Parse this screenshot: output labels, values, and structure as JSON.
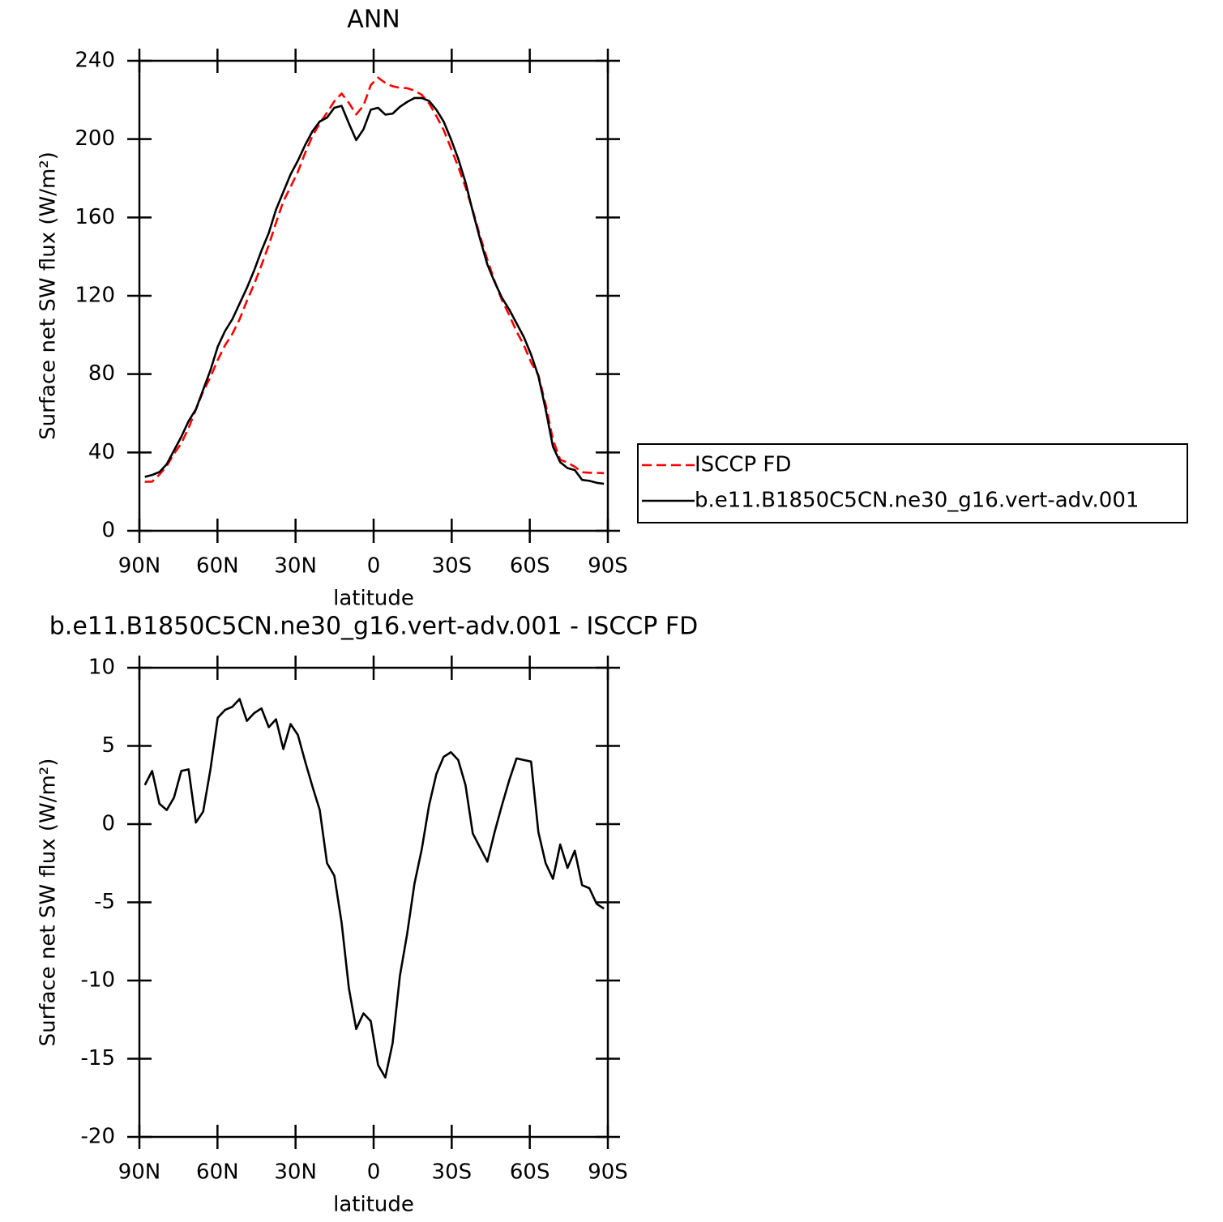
{
  "chart_data": [
    {
      "type": "line",
      "title": "ANN",
      "x_label": "latitude",
      "y_label": "Surface net SW flux (W/m²)",
      "x": [
        87.9,
        85.1,
        82.3,
        79.5,
        76.7,
        73.9,
        71.1,
        68.3,
        65.5,
        62.7,
        59.9,
        57.1,
        54.3,
        51.5,
        48.7,
        45.9,
        43.1,
        40.3,
        37.5,
        34.7,
        31.9,
        29.1,
        26.3,
        23.5,
        20.7,
        17.9,
        15.1,
        12.3,
        9.5,
        6.7,
        3.9,
        1.1,
        -1.7,
        -4.5,
        -7.3,
        -10.1,
        -12.9,
        -15.7,
        -18.5,
        -21.3,
        -24.1,
        -26.9,
        -29.7,
        -32.5,
        -35.3,
        -38.1,
        -40.9,
        -43.7,
        -46.5,
        -49.3,
        -52.1,
        -54.9,
        -57.7,
        -60.5,
        -63.3,
        -66.1,
        -68.9,
        -71.7,
        -74.5,
        -77.3,
        -80.1,
        -82.9,
        -85.7,
        -88.5
      ],
      "xlim": [
        90,
        -90
      ],
      "xticks": [
        {
          "value": 90,
          "label": "90N"
        },
        {
          "value": 60,
          "label": "60N"
        },
        {
          "value": 30,
          "label": "30N"
        },
        0,
        {
          "value": -30,
          "label": "30S"
        },
        {
          "value": -60,
          "label": "60S"
        },
        {
          "value": -90,
          "label": "90S"
        }
      ],
      "ylim": [
        0,
        240
      ],
      "yticks": [
        0,
        40,
        80,
        120,
        160,
        200,
        240
      ],
      "legend": "right",
      "series": [
        {
          "name": "ISCCP FD",
          "color": "#ff0000",
          "dash": "dashed",
          "values": [
            25.0,
            25.1,
            28.7,
            33.1,
            39.3,
            44.6,
            52.5,
            61.9,
            71.2,
            78.5,
            87.2,
            94.7,
            100.5,
            108,
            117.4,
            125.9,
            135.6,
            145.8,
            157.3,
            168.2,
            175.6,
            183.3,
            193,
            201.6,
            208.1,
            213.5,
            219.3,
            223.3,
            218.5,
            212.6,
            217.1,
            227.6,
            231.4,
            228.7,
            227,
            226.2,
            226,
            224.8,
            222.6,
            218.3,
            211.8,
            204.7,
            195.4,
            185.9,
            175.5,
            163.6,
            150.5,
            138.4,
            127.5,
            117.8,
            110.2,
            101.8,
            94.9,
            86,
            79.5,
            64.5,
            46.5,
            36.3,
            34.8,
            32.7,
            29.9,
            29.6,
            29.6,
            29.4
          ]
        },
        {
          "name": "b.e11.B1850C5CN.ne30_g16.vert-adv.001",
          "color": "#000000",
          "values": [
            27.5,
            28.5,
            30,
            34,
            41,
            48,
            56,
            62,
            72,
            82,
            94,
            102,
            108,
            116,
            124,
            133,
            143,
            152,
            164,
            173,
            182,
            189,
            197,
            204,
            209,
            211,
            216,
            217,
            208,
            199.5,
            205,
            215,
            216,
            212.5,
            213,
            216.5,
            219,
            221,
            221,
            219.5,
            215,
            209,
            200,
            190,
            178,
            163,
            149,
            136,
            127,
            119,
            113,
            106,
            99,
            90,
            79,
            62,
            43,
            35,
            32,
            31,
            26,
            25.5,
            24.5,
            24
          ]
        }
      ]
    },
    {
      "type": "line",
      "title": "b.e11.B1850C5CN.ne30_g16.vert-adv.001 - ISCCP FD",
      "x_label": "latitude",
      "y_label": "Surface net SW flux (W/m²)",
      "x": [
        87.9,
        85.1,
        82.3,
        79.5,
        76.7,
        73.9,
        71.1,
        68.3,
        65.5,
        62.7,
        59.9,
        57.1,
        54.3,
        51.5,
        48.7,
        45.9,
        43.1,
        40.3,
        37.5,
        34.7,
        31.9,
        29.1,
        26.3,
        23.5,
        20.7,
        17.9,
        15.1,
        12.3,
        9.5,
        6.7,
        3.9,
        1.1,
        -1.7,
        -4.5,
        -7.3,
        -10.1,
        -12.9,
        -15.7,
        -18.5,
        -21.3,
        -24.1,
        -26.9,
        -29.7,
        -32.5,
        -35.3,
        -38.1,
        -40.9,
        -43.7,
        -46.5,
        -49.3,
        -52.1,
        -54.9,
        -57.7,
        -60.5,
        -63.3,
        -66.1,
        -68.9,
        -71.7,
        -74.5,
        -77.3,
        -80.1,
        -82.9,
        -85.7,
        -88.5
      ],
      "xlim": [
        90,
        -90
      ],
      "xticks": [
        {
          "value": 90,
          "label": "90N"
        },
        {
          "value": 60,
          "label": "60N"
        },
        {
          "value": 30,
          "label": "30N"
        },
        0,
        {
          "value": -30,
          "label": "30S"
        },
        {
          "value": -60,
          "label": "60S"
        },
        {
          "value": -90,
          "label": "90S"
        }
      ],
      "ylim": [
        -20,
        10
      ],
      "yticks": [
        -20,
        -15,
        -10,
        -5,
        0,
        5,
        10
      ],
      "series": [
        {
          "color": "#000000",
          "values": [
            2.5,
            3.4,
            1.3,
            0.9,
            1.7,
            3.4,
            3.5,
            0.1,
            0.8,
            3.5,
            6.8,
            7.3,
            7.5,
            8.0,
            6.6,
            7.1,
            7.4,
            6.2,
            6.7,
            4.8,
            6.4,
            5.7,
            4.0,
            2.4,
            0.9,
            -2.5,
            -3.3,
            -6.3,
            -10.5,
            -13.1,
            -12.1,
            -12.6,
            -15.4,
            -16.2,
            -14.0,
            -9.7,
            -7.0,
            -3.8,
            -1.6,
            1.2,
            3.2,
            4.3,
            4.6,
            4.1,
            2.5,
            -0.6,
            -1.5,
            -2.4,
            -0.5,
            1.2,
            2.8,
            4.2,
            4.1,
            4.0,
            -0.5,
            -2.5,
            -3.5,
            -1.3,
            -2.8,
            -1.7,
            -3.9,
            -4.1,
            -5.1,
            -5.4
          ]
        }
      ]
    }
  ]
}
